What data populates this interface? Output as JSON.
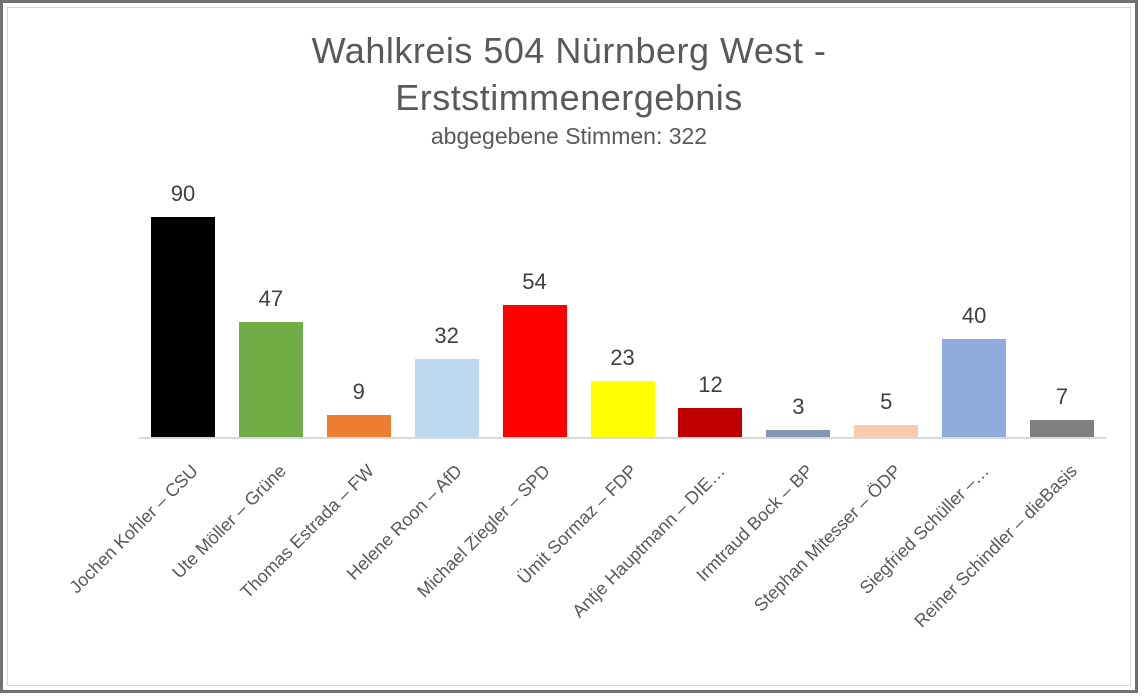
{
  "chart_data": {
    "type": "bar",
    "title_lines": [
      "Wahlkreis 504 Nürnberg West -",
      "Erststimmenergebnis"
    ],
    "title_full": "Wahlkreis 504 Nürnberg West - Erststimmenergebnis",
    "subtitle": "abgegebene Stimmen: 322",
    "abgegebene_stimmen": 322,
    "categories": [
      "Jochen Kohler – CSU",
      "Ute Möller – Grüne",
      "Thomas Estrada – FW",
      "Helene Roon – AfD",
      "Michael Ziegler – SPD",
      "Ümit Sormaz – FDP",
      "Antje Hauptmann – DIE…",
      "Irmtraud Bock – BP",
      "Stephan Mitesser – ÖDP",
      "Siegfried Schüller –…",
      "Reiner Schindler – dieBasis"
    ],
    "values": [
      90,
      47,
      9,
      32,
      54,
      23,
      12,
      3,
      5,
      40,
      7
    ],
    "bar_colors": [
      "#000000",
      "#70AD47",
      "#ED7D31",
      "#BDD7EE",
      "#FF0000",
      "#FFFF00",
      "#C00000",
      "#8497B0",
      "#F8CBAD",
      "#8FAADC",
      "#7F7F7F"
    ],
    "ylim": [
      0,
      100
    ],
    "grid": false,
    "legend": false,
    "data_labels_shown": true,
    "x_label_rotation_deg": 45,
    "colors": {
      "title_text": "#595959",
      "value_label_text": "#404040",
      "axis_label_text": "#595959",
      "axis_line": "#d9d9d9",
      "outer_border": "#717171",
      "inner_border": "#d9d9d9",
      "background": "#ffffff"
    }
  }
}
